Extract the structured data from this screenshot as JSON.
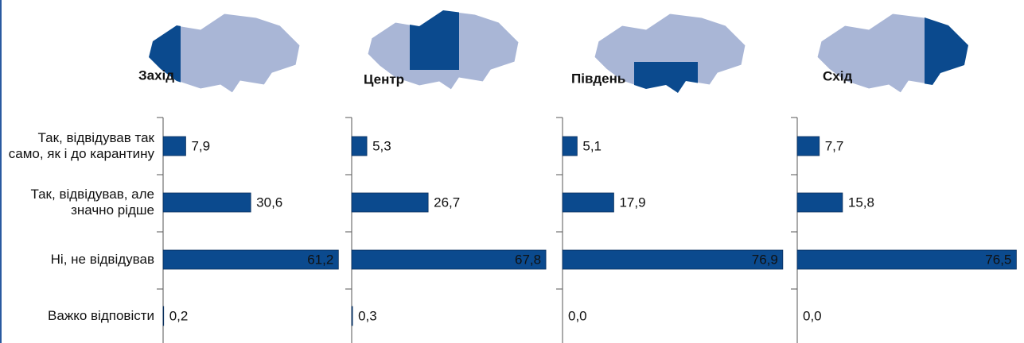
{
  "chart_data": {
    "type": "bar",
    "categories": [
      "Так, відвідував так само, як і до карантину",
      "Так, відвідував, але значно рідше",
      "Ні, не відвідував",
      "Важко відповісти"
    ],
    "xlim": [
      0,
      80
    ],
    "series": [
      {
        "name": "Захід",
        "color": "#0b4a8e",
        "values": [
          7.9,
          30.6,
          61.2,
          0.2
        ],
        "value_labels": [
          "7,9",
          "30,6",
          "61,2",
          "0,2"
        ]
      },
      {
        "name": "Центр",
        "color": "#0b4a8e",
        "values": [
          5.3,
          26.7,
          67.8,
          0.3
        ],
        "value_labels": [
          "5,3",
          "26,7",
          "67,8",
          "0,3"
        ]
      },
      {
        "name": "Південь",
        "color": "#0b4a8e",
        "values": [
          5.1,
          17.9,
          76.9,
          0.0
        ],
        "value_labels": [
          "5,1",
          "17,9",
          "76,9",
          "0,0"
        ]
      },
      {
        "name": "Схід",
        "color": "#0b4a8e",
        "values": [
          7.7,
          15.8,
          76.5,
          0.0
        ],
        "value_labels": [
          "7,7",
          "15,8",
          "76,5",
          "0,0"
        ]
      }
    ]
  }
}
